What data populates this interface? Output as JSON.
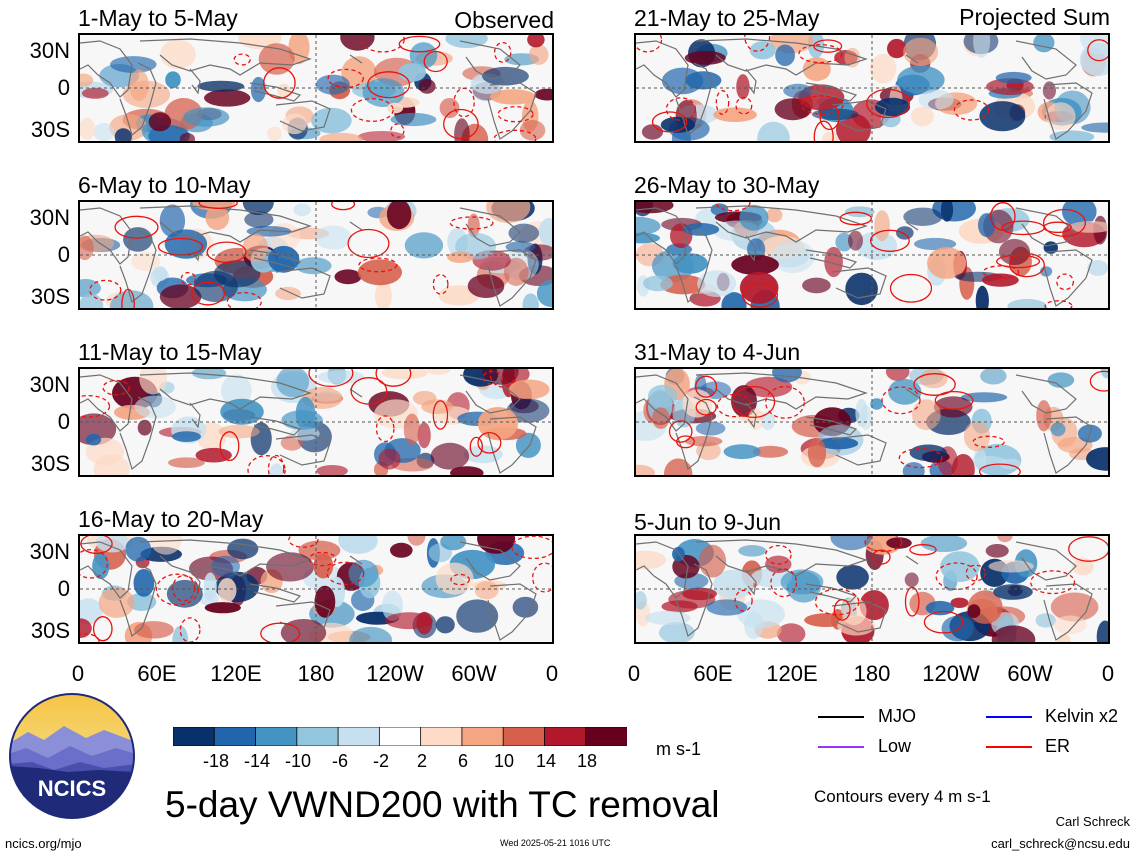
{
  "header": {
    "observed_label": "Observed",
    "projected_label": "Projected Sum"
  },
  "panels_left": [
    {
      "title": "1-May to 5-May"
    },
    {
      "title": "6-May to 10-May"
    },
    {
      "title": "11-May to 15-May"
    },
    {
      "title": "16-May to 20-May"
    }
  ],
  "panels_right": [
    {
      "title": "21-May to 25-May"
    },
    {
      "title": "26-May to 30-May"
    },
    {
      "title": "31-May to 4-Jun"
    },
    {
      "title": "5-Jun to 9-Jun"
    }
  ],
  "lat_labels": [
    "30N",
    "0",
    "30S"
  ],
  "lon_labels": [
    "0",
    "60E",
    "120E",
    "180",
    "120W",
    "60W",
    "0"
  ],
  "colorbar": {
    "ticks": [
      "-18",
      "-14",
      "-10",
      "-6",
      "-2",
      "2",
      "6",
      "10",
      "14",
      "18"
    ],
    "colors": [
      "#08306b",
      "#2166ac",
      "#4393c3",
      "#92c5de",
      "#c6e0ef",
      "#ffffff",
      "#fddbc7",
      "#f4a582",
      "#d6604d",
      "#b2182b",
      "#67001f"
    ],
    "units": "m s-1"
  },
  "legend": {
    "items": [
      {
        "label": "MJO",
        "color": "#000000"
      },
      {
        "label": "Kelvin x2",
        "color": "#0000ff"
      },
      {
        "label": "Low",
        "color": "#9933ff"
      },
      {
        "label": "ER",
        "color": "#ff0000"
      }
    ],
    "contours_note": "Contours every 4 m s-1"
  },
  "main_title": "5-day VWND200 with TC removal",
  "logo_text": "NCICS",
  "footer": {
    "left": "ncics.org/mjo",
    "timestamp": "Wed 2025-05-21 1016 UTC",
    "author": "Carl Schreck",
    "email": "carl_schreck@ncsu.edu"
  }
}
